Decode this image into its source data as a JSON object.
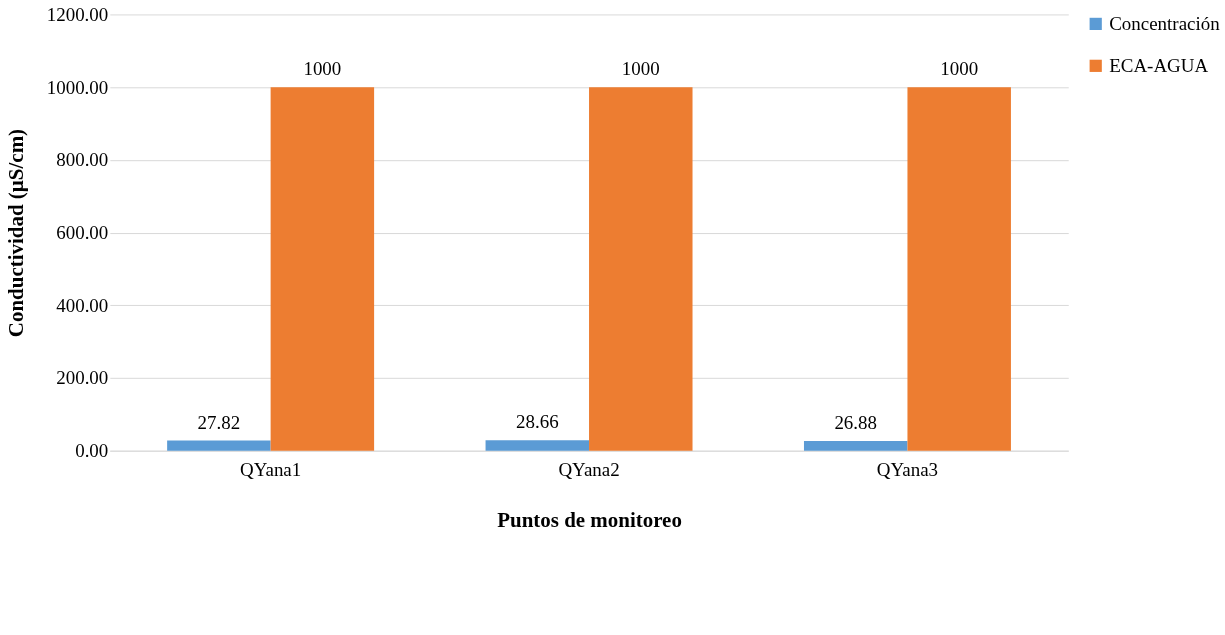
{
  "chart_data": {
    "type": "bar",
    "xlabel": "Puntos de monitoreo",
    "ylabel": "Conductividad (µS/cm)",
    "categories": [
      "QYana1",
      "QYana2",
      "QYana3"
    ],
    "series": [
      {
        "name": "Concentración",
        "color": "#5b9bd5",
        "values": [
          27.82,
          28.66,
          26.88
        ]
      },
      {
        "name": "ECA-AGUA",
        "color": "#ed7d31",
        "values": [
          1000,
          1000,
          1000
        ]
      }
    ],
    "ylim": [
      0,
      1200
    ],
    "yticks": [
      {
        "value": 0,
        "label": "0.00"
      },
      {
        "value": 200,
        "label": "200.00"
      },
      {
        "value": 400,
        "label": "400.00"
      },
      {
        "value": 600,
        "label": "600.00"
      },
      {
        "value": 800,
        "label": "800.00"
      },
      {
        "value": 1000,
        "label": "1000.00"
      },
      {
        "value": 1200,
        "label": "1200.00"
      }
    ],
    "grid": "y",
    "legend": "right",
    "data_labels": true
  }
}
